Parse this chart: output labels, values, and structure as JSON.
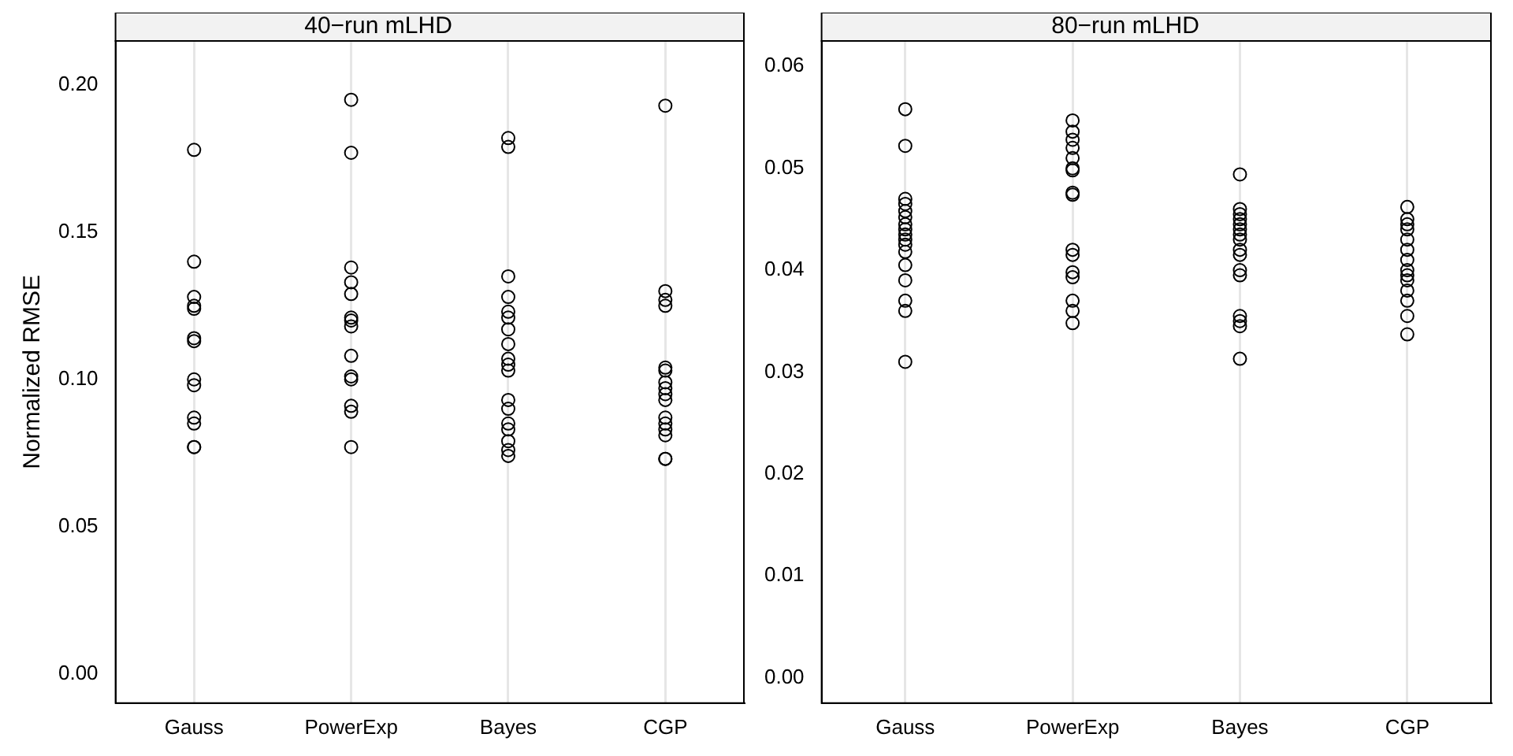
{
  "chart_data": [
    {
      "type": "scatter",
      "title": "40−run mLHD",
      "ylabel": "Normalized RMSE",
      "categories": [
        "Gauss",
        "PowerExp",
        "Bayes",
        "CGP"
      ],
      "ylim": [
        -0.01,
        0.215
      ],
      "yticks": [
        {
          "value": 0,
          "label": "0.00"
        },
        0.05,
        {
          "value": 0.1,
          "label": "0.10"
        },
        0.15,
        {
          "value": 0.2,
          "label": "0.20"
        }
      ],
      "grid": "x",
      "marker": "circle",
      "legend": false,
      "series": [
        {
          "color": "#000000",
          "x": [
            "Gauss",
            "Gauss",
            "Gauss",
            "Gauss",
            "Gauss",
            "Gauss",
            "Gauss",
            "Gauss",
            "Gauss",
            "Gauss",
            "Gauss",
            "Gauss",
            "Gauss"
          ],
          "values": [
            0.178,
            0.14,
            0.128,
            0.125,
            0.124,
            0.114,
            0.113,
            0.1,
            0.098,
            0.087,
            0.085,
            0.077,
            0.077
          ]
        },
        {
          "color": "#000000",
          "x": [
            "PowerExp",
            "PowerExp",
            "PowerExp",
            "PowerExp",
            "PowerExp",
            "PowerExp",
            "PowerExp",
            "PowerExp",
            "PowerExp",
            "PowerExp",
            "PowerExp",
            "PowerExp",
            "PowerExp",
            "PowerExp"
          ],
          "values": [
            0.195,
            0.177,
            0.138,
            0.133,
            0.129,
            0.121,
            0.12,
            0.118,
            0.108,
            0.101,
            0.1,
            0.091,
            0.089,
            0.077
          ]
        },
        {
          "color": "#000000",
          "x": [
            "Bayes",
            "Bayes",
            "Bayes",
            "Bayes",
            "Bayes",
            "Bayes",
            "Bayes",
            "Bayes",
            "Bayes",
            "Bayes",
            "Bayes",
            "Bayes",
            "Bayes",
            "Bayes",
            "Bayes",
            "Bayes",
            "Bayes",
            "Bayes"
          ],
          "values": [
            0.182,
            0.179,
            0.135,
            0.128,
            0.123,
            0.121,
            0.117,
            0.112,
            0.107,
            0.105,
            0.103,
            0.093,
            0.09,
            0.085,
            0.083,
            0.079,
            0.076,
            0.074
          ]
        },
        {
          "color": "#000000",
          "x": [
            "CGP",
            "CGP",
            "CGP",
            "CGP",
            "CGP",
            "CGP",
            "CGP",
            "CGP",
            "CGP",
            "CGP",
            "CGP",
            "CGP",
            "CGP",
            "CGP",
            "CGP",
            "CGP"
          ],
          "values": [
            0.193,
            0.13,
            0.127,
            0.125,
            0.104,
            0.103,
            0.099,
            0.097,
            0.095,
            0.093,
            0.087,
            0.085,
            0.083,
            0.081,
            0.073,
            0.073
          ]
        }
      ]
    },
    {
      "type": "scatter",
      "title": "80−run mLHD",
      "categories": [
        "Gauss",
        "PowerExp",
        "Bayes",
        "CGP"
      ],
      "ylim": [
        -0.0025,
        0.0625
      ],
      "yticks": [
        {
          "value": 0,
          "label": "0.00"
        },
        0.01,
        0.02,
        0.03,
        0.04,
        0.05,
        0.06
      ],
      "grid": "x",
      "marker": "circle",
      "legend": false,
      "series": [
        {
          "color": "#000000",
          "x": [
            "Gauss",
            "Gauss",
            "Gauss",
            "Gauss",
            "Gauss",
            "Gauss",
            "Gauss",
            "Gauss",
            "Gauss",
            "Gauss",
            "Gauss",
            "Gauss",
            "Gauss",
            "Gauss",
            "Gauss",
            "Gauss",
            "Gauss"
          ],
          "values": [
            0.0558,
            0.0522,
            0.047,
            0.0465,
            0.0458,
            0.0452,
            0.0445,
            0.044,
            0.0435,
            0.043,
            0.0425,
            0.0418,
            0.0405,
            0.039,
            0.037,
            0.036,
            0.031
          ]
        },
        {
          "color": "#000000",
          "x": [
            "PowerExp",
            "PowerExp",
            "PowerExp",
            "PowerExp",
            "PowerExp",
            "PowerExp",
            "PowerExp",
            "PowerExp",
            "PowerExp",
            "PowerExp",
            "PowerExp",
            "PowerExp",
            "PowerExp",
            "PowerExp",
            "PowerExp",
            "PowerExp"
          ],
          "values": [
            0.0547,
            0.0536,
            0.0528,
            0.052,
            0.051,
            0.05,
            0.0498,
            0.0476,
            0.0474,
            0.042,
            0.0415,
            0.0398,
            0.0393,
            0.037,
            0.036,
            0.0348
          ]
        },
        {
          "color": "#000000",
          "x": [
            "Bayes",
            "Bayes",
            "Bayes",
            "Bayes",
            "Bayes",
            "Bayes",
            "Bayes",
            "Bayes",
            "Bayes",
            "Bayes",
            "Bayes",
            "Bayes",
            "Bayes",
            "Bayes",
            "Bayes",
            "Bayes"
          ],
          "values": [
            0.0494,
            0.046,
            0.0455,
            0.045,
            0.0445,
            0.044,
            0.0435,
            0.043,
            0.042,
            0.0415,
            0.04,
            0.0395,
            0.0355,
            0.035,
            0.0345,
            0.0313
          ]
        },
        {
          "color": "#000000",
          "x": [
            "CGP",
            "CGP",
            "CGP",
            "CGP",
            "CGP",
            "CGP",
            "CGP",
            "CGP",
            "CGP",
            "CGP",
            "CGP",
            "CGP",
            "CGP",
            "CGP"
          ],
          "values": [
            0.0462,
            0.045,
            0.0445,
            0.044,
            0.043,
            0.042,
            0.041,
            0.04,
            0.0395,
            0.039,
            0.038,
            0.037,
            0.0355,
            0.0337
          ]
        }
      ]
    }
  ]
}
